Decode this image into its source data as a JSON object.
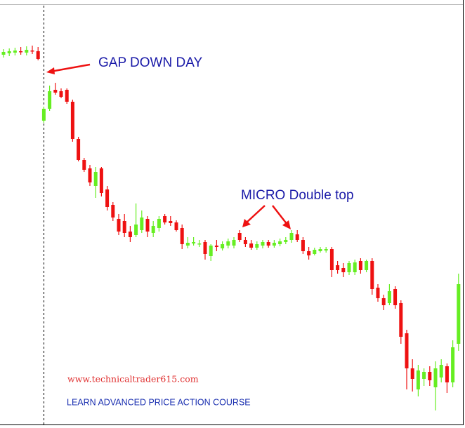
{
  "chart_data": {
    "type": "candlestick",
    "annotations": [
      {
        "text": "GAP DOWN DAY"
      },
      {
        "text": "MICRO Double top"
      }
    ],
    "watermarks": [
      {
        "text": "www.technicaltrader615.com",
        "color": "#e03030"
      },
      {
        "text": "LEARN ADVANCED PRICE ACTION COURSE",
        "color": "#1a2fb0"
      }
    ],
    "up_color": "#66ee22",
    "down_color": "#ee1111",
    "ylim": [
      0,
      600
    ],
    "categories": [
      null,
      null,
      null,
      null,
      null,
      null,
      null,
      null,
      null,
      null,
      null,
      null,
      null,
      null,
      null,
      null,
      null,
      null,
      null,
      null,
      null,
      null,
      null,
      null,
      null,
      null,
      null,
      null,
      null,
      null,
      null,
      null,
      null,
      null,
      null,
      null,
      null,
      null,
      null,
      null,
      null,
      null,
      null,
      null,
      null,
      null,
      null,
      null,
      null,
      null,
      null,
      null,
      null,
      null,
      null,
      null,
      null,
      null,
      null,
      null,
      null,
      null,
      null,
      null,
      null,
      null,
      null,
      null,
      null,
      null,
      null,
      null,
      null,
      null,
      null,
      null,
      null,
      null,
      null,
      null
    ],
    "open": [
      522,
      524,
      525,
      527,
      525,
      528,
      527,
      428,
      445,
      472,
      470,
      472,
      455,
      402,
      372,
      360,
      335,
      360,
      330,
      308,
      288,
      285,
      270,
      265,
      272,
      288,
      268,
      275,
      292,
      285,
      283,
      275,
      250,
      253,
      252,
      255,
      235,
      250,
      246,
      250,
      250,
      268,
      258,
      253,
      247,
      250,
      255,
      250,
      252,
      255,
      258,
      266,
      258,
      242,
      238,
      242,
      243,
      245,
      222,
      218,
      212,
      212,
      228,
      215,
      228,
      190,
      175,
      168,
      188,
      168,
      125,
      75,
      45,
      60,
      70,
      48,
      62,
      78,
      55,
      110
    ],
    "high": [
      530,
      531,
      532,
      533,
      534,
      535,
      533,
      448,
      478,
      482,
      474,
      474,
      458,
      405,
      375,
      365,
      362,
      362,
      335,
      312,
      295,
      295,
      278,
      310,
      300,
      292,
      285,
      292,
      295,
      292,
      286,
      280,
      262,
      262,
      258,
      258,
      252,
      258,
      256,
      260,
      262,
      272,
      262,
      258,
      256,
      258,
      258,
      258,
      260,
      262,
      272,
      272,
      262,
      248,
      247,
      248,
      248,
      248,
      228,
      225,
      228,
      230,
      232,
      230,
      232,
      195,
      180,
      195,
      192,
      172,
      130,
      88,
      80,
      75,
      78,
      85,
      88,
      82,
      115,
      210
    ],
    "low": [
      518,
      520,
      521,
      522,
      521,
      523,
      514,
      425,
      442,
      465,
      460,
      452,
      398,
      370,
      355,
      335,
      318,
      320,
      300,
      285,
      265,
      262,
      255,
      262,
      268,
      262,
      262,
      270,
      280,
      278,
      270,
      245,
      246,
      250,
      248,
      230,
      228,
      242,
      243,
      246,
      246,
      255,
      248,
      244,
      244,
      246,
      247,
      247,
      249,
      252,
      254,
      255,
      238,
      230,
      236,
      240,
      240,
      205,
      210,
      205,
      208,
      208,
      210,
      212,
      180,
      170,
      158,
      165,
      160,
      110,
      45,
      42,
      35,
      50,
      50,
      15,
      55,
      40,
      48,
      100
    ],
    "close": [
      526,
      527,
      528,
      526,
      529,
      527,
      516,
      445,
      470,
      468,
      462,
      455,
      402,
      372,
      358,
      340,
      355,
      325,
      305,
      290,
      270,
      268,
      262,
      280,
      290,
      270,
      278,
      288,
      283,
      282,
      272,
      252,
      254,
      255,
      253,
      238,
      250,
      248,
      252,
      256,
      258,
      258,
      252,
      247,
      252,
      255,
      250,
      254,
      256,
      258,
      268,
      258,
      242,
      236,
      244,
      245,
      245,
      215,
      215,
      212,
      225,
      226,
      215,
      228,
      188,
      175,
      165,
      185,
      165,
      120,
      75,
      60,
      72,
      70,
      58,
      75,
      80,
      55,
      105,
      195
    ]
  }
}
